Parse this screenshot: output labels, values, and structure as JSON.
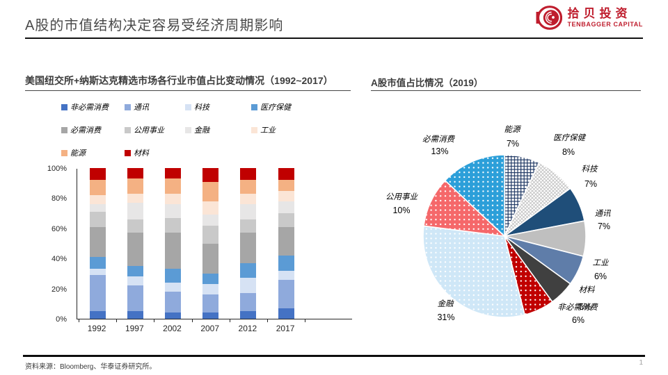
{
  "slide": {
    "title": "A股的市值结构决定容易受经济周期影响",
    "source_note": "资料来源：Bloomberg、华泰证券研究所。",
    "page_number": "1",
    "logo": {
      "cn": "拾贝投资",
      "en": "TENBAGGER CAPITAL",
      "color": "#BF1D2D"
    }
  },
  "chart_data": [
    {
      "type": "bar",
      "stacked": true,
      "title": "美国纽交所+纳斯达克精选市场各行业市值占比变动情况（1992~2017）",
      "categories": [
        "1992",
        "1997",
        "2002",
        "2007",
        "2012",
        "2017"
      ],
      "y_ticks": [
        "100%",
        "80%",
        "60%",
        "40%",
        "20%",
        "0%"
      ],
      "ylim": [
        0,
        100
      ],
      "unit": "%",
      "grid": false,
      "legend_position": "top",
      "series": [
        {
          "name": "非必需消费",
          "color": "#4472C4",
          "values": [
            5,
            5,
            4,
            4,
            5,
            7
          ]
        },
        {
          "name": "通讯",
          "color": "#8FAADC",
          "values": [
            24,
            17,
            14,
            12,
            12,
            19
          ]
        },
        {
          "name": "科技",
          "color": "#D6E2F4",
          "values": [
            4,
            6,
            6,
            7,
            10,
            6
          ]
        },
        {
          "name": "医疗保健",
          "color": "#5B9BD5",
          "values": [
            8,
            7,
            9,
            7,
            10,
            10
          ]
        },
        {
          "name": "必需消费",
          "color": "#A6A6A6",
          "values": [
            20,
            22,
            24,
            20,
            20,
            19
          ]
        },
        {
          "name": "公用事业",
          "color": "#C9C9C9",
          "values": [
            10,
            9,
            10,
            12,
            9,
            9
          ]
        },
        {
          "name": "金融",
          "color": "#E7E6E6",
          "values": [
            5,
            11,
            9,
            7,
            10,
            8
          ]
        },
        {
          "name": "工业",
          "color": "#FBE5D6",
          "values": [
            6,
            6,
            7,
            9,
            7,
            7
          ]
        },
        {
          "name": "能源",
          "color": "#F4B183",
          "values": [
            10,
            10,
            10,
            13,
            9,
            7
          ]
        },
        {
          "name": "材料",
          "color": "#C00000",
          "values": [
            8,
            7,
            7,
            9,
            8,
            8
          ]
        }
      ]
    },
    {
      "type": "pie",
      "title": "A股市值占比情况（2019）",
      "start_angle_deg": 0,
      "direction": "clockwise",
      "slices": [
        {
          "name": "能源",
          "value": 7,
          "pct_text": "7%",
          "color": "#1F3864",
          "fill_style": "grid"
        },
        {
          "name": "医疗保健",
          "value": 8,
          "pct_text": "8%",
          "color": "#BFBFBF",
          "fill_style": "hatch"
        },
        {
          "name": "科技",
          "value": 7,
          "pct_text": "7%",
          "color": "#1F4E79",
          "fill_style": "solid"
        },
        {
          "name": "通讯",
          "value": 7,
          "pct_text": "7%",
          "color": "#BFBFBF",
          "fill_style": "solid"
        },
        {
          "name": "工业",
          "value": 6,
          "pct_text": "6%",
          "color": "#5F7DA9",
          "fill_style": "solid"
        },
        {
          "name": "材料",
          "value": 5,
          "pct_text": "5%",
          "color": "#404040",
          "fill_style": "solid"
        },
        {
          "name": "非必需消费",
          "value": 6,
          "pct_text": "6%",
          "color": "#C00000",
          "fill_style": "dots"
        },
        {
          "name": "金融",
          "value": 31,
          "pct_text": "31%",
          "color": "#CFE7F7",
          "fill_style": "dots"
        },
        {
          "name": "公用事业",
          "value": 10,
          "pct_text": "10%",
          "color": "#F5686A",
          "fill_style": "dots"
        },
        {
          "name": "必需消费",
          "value": 13,
          "pct_text": "13%",
          "color": "#2C9FD9",
          "fill_style": "dots"
        }
      ]
    }
  ]
}
